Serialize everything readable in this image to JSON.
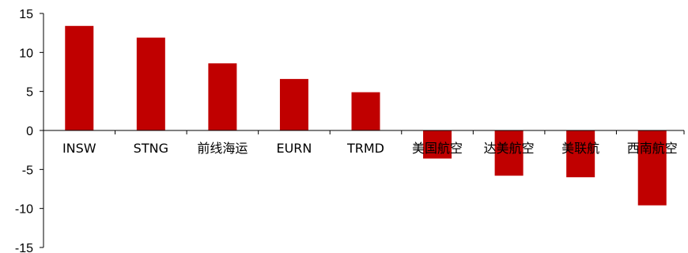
{
  "chart_data": {
    "type": "bar",
    "title": "",
    "xlabel": "",
    "ylabel": "",
    "categories": [
      "INSW",
      "STNG",
      "前线海运",
      "EURN",
      "TRMD",
      "美国航空",
      "达美航空",
      "美联航",
      "西南航空"
    ],
    "values": [
      13.4,
      11.9,
      8.6,
      6.6,
      4.9,
      -3.6,
      -5.8,
      -6.0,
      -9.6
    ],
    "ylim": [
      -15,
      15
    ],
    "yticks": [
      15,
      10,
      5,
      0,
      -5,
      -10,
      -15
    ],
    "grid": false,
    "legend": "none",
    "bar_color": "#C00000"
  }
}
